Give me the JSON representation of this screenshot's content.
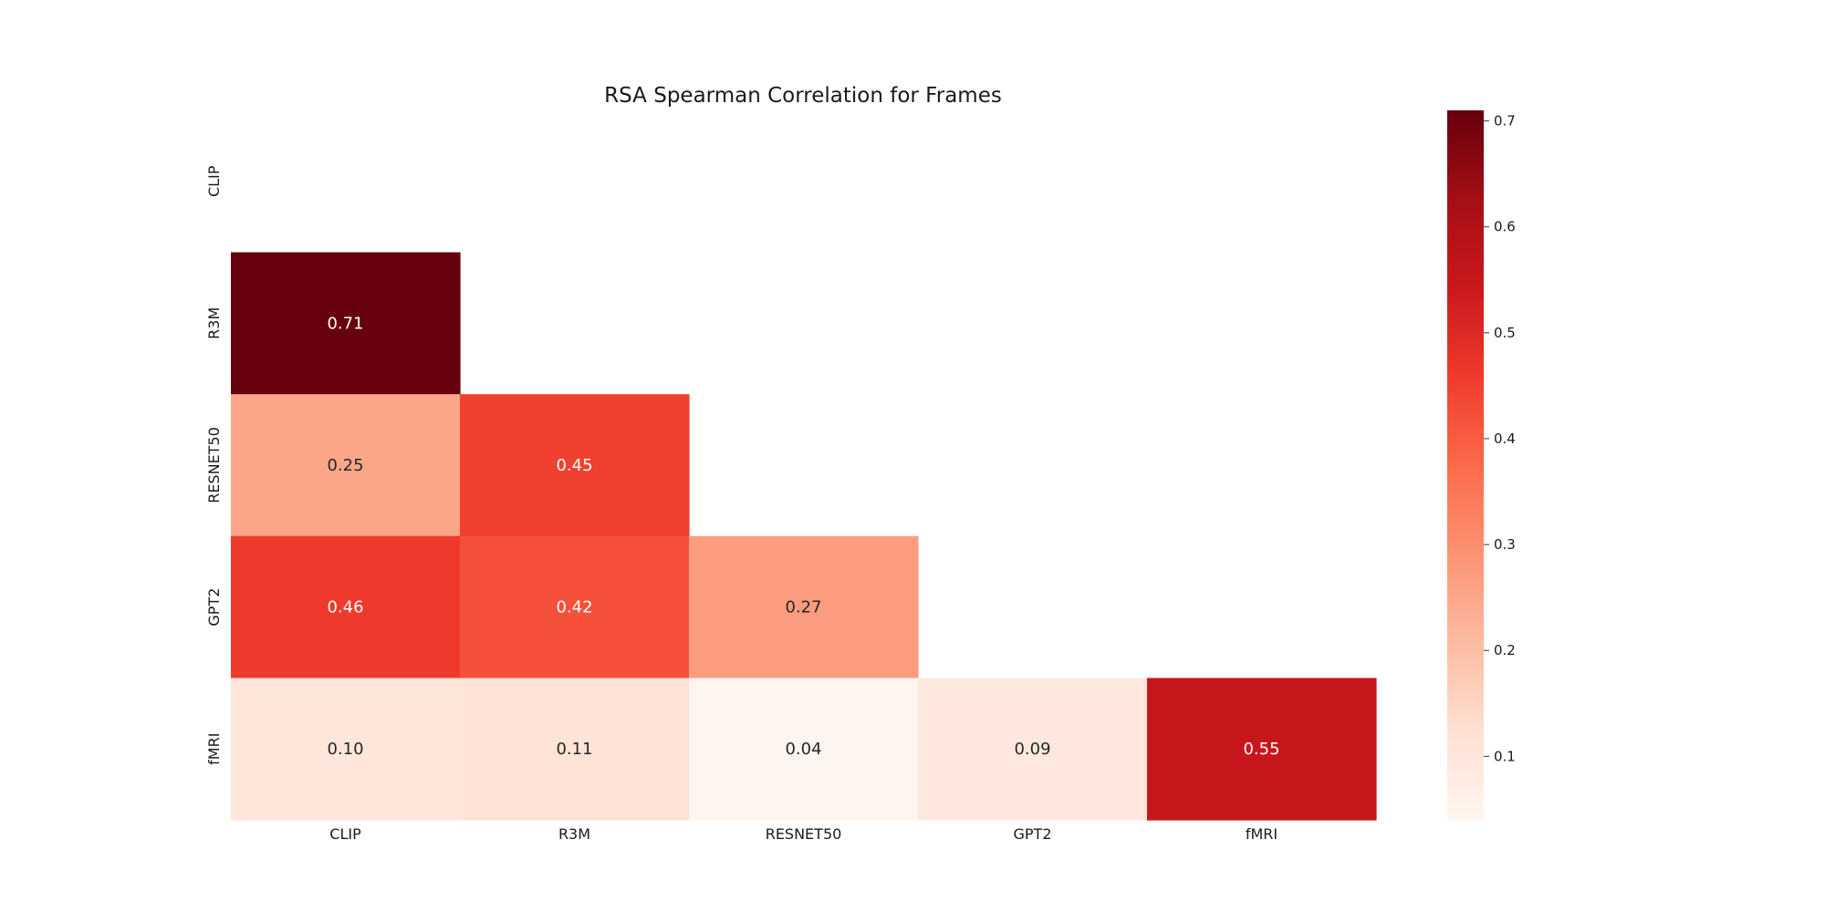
{
  "chart_data": {
    "type": "heatmap",
    "title": "RSA Spearman Correlation for Frames",
    "xlabel": "",
    "ylabel": "",
    "row_labels": [
      "CLIP",
      "R3M",
      "RESNET50",
      "GPT2",
      "fMRI"
    ],
    "col_labels": [
      "CLIP",
      "R3M",
      "RESNET50",
      "GPT2",
      "fMRI"
    ],
    "values": [
      [
        null,
        null,
        null,
        null,
        null
      ],
      [
        0.71,
        null,
        null,
        null,
        null
      ],
      [
        0.25,
        0.45,
        null,
        null,
        null
      ],
      [
        0.46,
        0.42,
        0.27,
        null,
        null
      ],
      [
        0.1,
        0.11,
        0.04,
        0.09,
        0.55
      ]
    ],
    "colormap": "Reds",
    "vmin": 0.04,
    "vmax": 0.71,
    "colorbar_ticks": [
      0.1,
      0.2,
      0.3,
      0.4,
      0.5,
      0.6,
      0.7
    ],
    "colorbar_tick_labels": [
      "0.1",
      "0.2",
      "0.3",
      "0.4",
      "0.5",
      "0.6",
      "0.7"
    ],
    "annotation_format": "0.00",
    "mask": "upper-triangle-including-diagonal-except-last-cell",
    "grid": false
  }
}
